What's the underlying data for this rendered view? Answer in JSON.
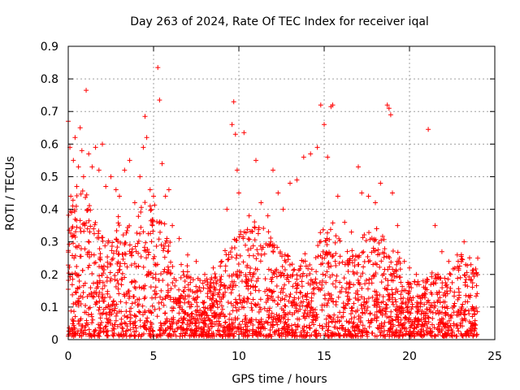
{
  "chart_data": {
    "type": "scatter",
    "title": "Day 263 of 2024, Rate Of TEC Index for receiver iqal",
    "xlabel": "GPS time / hours",
    "ylabel": "ROTI / TECUs",
    "xlim": [
      0,
      25
    ],
    "ylim": [
      0,
      0.9
    ],
    "x_ticks": [
      0,
      5,
      10,
      15,
      20,
      25
    ],
    "y_ticks": [
      0,
      0.1,
      0.2,
      0.3,
      0.4,
      0.5,
      0.6,
      0.7,
      0.8,
      0.9
    ],
    "x_tick_labels": [
      "0",
      "5",
      "10",
      "15",
      "20",
      "25"
    ],
    "y_tick_labels": [
      "0",
      "0.1",
      "0.2",
      "0.3",
      "0.4",
      "0.5",
      "0.6",
      "0.7",
      "0.8",
      "0.9"
    ],
    "grid": true,
    "legend": "none",
    "marker": "+",
    "color": "#ff0000",
    "data_x_range": [
      0,
      24
    ],
    "series": [
      {
        "points": [
          [
            0.0,
            0.67
          ],
          [
            0.1,
            0.59
          ],
          [
            0.15,
            0.44
          ],
          [
            0.2,
            0.39
          ],
          [
            0.3,
            0.55
          ],
          [
            0.4,
            0.62
          ],
          [
            0.5,
            0.47
          ],
          [
            0.6,
            0.53
          ],
          [
            0.7,
            0.65
          ],
          [
            0.8,
            0.58
          ],
          [
            0.9,
            0.5
          ],
          [
            1.05,
            0.765
          ],
          [
            1.2,
            0.57
          ],
          [
            1.4,
            0.53
          ],
          [
            1.6,
            0.59
          ],
          [
            1.8,
            0.52
          ],
          [
            2.0,
            0.6
          ],
          [
            2.2,
            0.47
          ],
          [
            2.5,
            0.5
          ],
          [
            2.8,
            0.46
          ],
          [
            3.0,
            0.44
          ],
          [
            3.3,
            0.52
          ],
          [
            3.6,
            0.55
          ],
          [
            3.9,
            0.42
          ],
          [
            4.2,
            0.5
          ],
          [
            4.4,
            0.59
          ],
          [
            4.5,
            0.685
          ],
          [
            4.6,
            0.62
          ],
          [
            4.8,
            0.46
          ],
          [
            5.0,
            0.44
          ],
          [
            5.25,
            0.835
          ],
          [
            5.35,
            0.735
          ],
          [
            5.5,
            0.54
          ],
          [
            5.7,
            0.44
          ],
          [
            5.9,
            0.46
          ],
          [
            6.1,
            0.35
          ],
          [
            6.5,
            0.31
          ],
          [
            7.0,
            0.26
          ],
          [
            7.5,
            0.24
          ],
          [
            8.0,
            0.2
          ],
          [
            8.5,
            0.22
          ],
          [
            9.0,
            0.24
          ],
          [
            9.3,
            0.4
          ],
          [
            9.6,
            0.66
          ],
          [
            9.7,
            0.73
          ],
          [
            9.8,
            0.63
          ],
          [
            9.9,
            0.52
          ],
          [
            10.0,
            0.45
          ],
          [
            10.3,
            0.635
          ],
          [
            10.6,
            0.38
          ],
          [
            11.0,
            0.55
          ],
          [
            11.3,
            0.42
          ],
          [
            11.7,
            0.38
          ],
          [
            12.0,
            0.52
          ],
          [
            12.3,
            0.45
          ],
          [
            12.6,
            0.4
          ],
          [
            13.0,
            0.48
          ],
          [
            13.4,
            0.49
          ],
          [
            13.8,
            0.56
          ],
          [
            14.2,
            0.57
          ],
          [
            14.6,
            0.59
          ],
          [
            14.8,
            0.72
          ],
          [
            15.0,
            0.66
          ],
          [
            15.2,
            0.56
          ],
          [
            15.4,
            0.715
          ],
          [
            15.5,
            0.72
          ],
          [
            15.8,
            0.44
          ],
          [
            16.2,
            0.36
          ],
          [
            16.6,
            0.33
          ],
          [
            17.0,
            0.53
          ],
          [
            17.2,
            0.45
          ],
          [
            17.6,
            0.44
          ],
          [
            18.0,
            0.42
          ],
          [
            18.3,
            0.48
          ],
          [
            18.7,
            0.72
          ],
          [
            18.8,
            0.71
          ],
          [
            18.9,
            0.69
          ],
          [
            19.0,
            0.45
          ],
          [
            19.3,
            0.35
          ],
          [
            19.7,
            0.24
          ],
          [
            20.0,
            0.22
          ],
          [
            20.4,
            0.2
          ],
          [
            20.8,
            0.18
          ],
          [
            21.1,
            0.645
          ],
          [
            21.5,
            0.35
          ],
          [
            21.9,
            0.27
          ],
          [
            22.3,
            0.24
          ],
          [
            22.8,
            0.26
          ],
          [
            23.2,
            0.3
          ],
          [
            23.6,
            0.23
          ],
          [
            24.0,
            0.25
          ]
        ]
      }
    ]
  }
}
